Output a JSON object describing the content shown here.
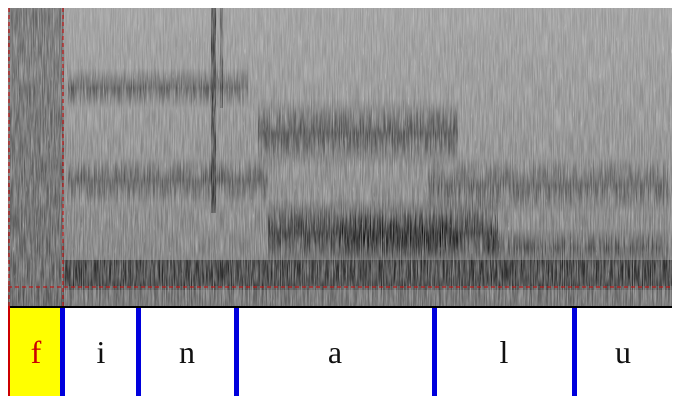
{
  "spectrogram": {
    "cursor_color": "#cc0000",
    "selection_color": "#ffff00",
    "boundary_color": "#0000dd"
  },
  "tier": {
    "segments": [
      {
        "label": "f",
        "selected": true
      },
      {
        "label": "i",
        "selected": false
      },
      {
        "label": "n",
        "selected": false
      },
      {
        "label": "a",
        "selected": false
      },
      {
        "label": "l",
        "selected": false
      },
      {
        "label": "u",
        "selected": false
      }
    ]
  }
}
